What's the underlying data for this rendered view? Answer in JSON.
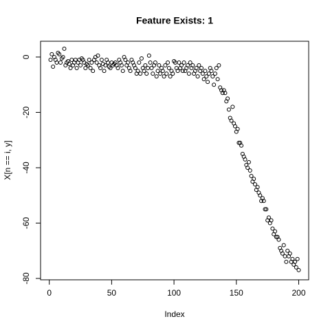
{
  "chart_data": {
    "type": "scatter",
    "title": "Feature Exists: 1",
    "x_label": "Index",
    "y_label": "X[n == i, y]",
    "x": [
      1,
      2,
      3,
      4,
      5,
      6,
      7,
      8,
      9,
      10,
      11,
      12,
      13,
      14,
      15,
      16,
      17,
      18,
      19,
      20,
      21,
      22,
      23,
      24,
      25,
      26,
      27,
      28,
      29,
      30,
      31,
      32,
      33,
      34,
      35,
      36,
      37,
      38,
      39,
      40,
      41,
      42,
      43,
      44,
      45,
      46,
      47,
      48,
      49,
      50,
      51,
      52,
      53,
      54,
      55,
      56,
      57,
      58,
      59,
      60,
      61,
      62,
      63,
      64,
      65,
      66,
      67,
      68,
      69,
      70,
      71,
      72,
      73,
      74,
      75,
      76,
      77,
      78,
      79,
      80,
      81,
      82,
      83,
      84,
      85,
      86,
      87,
      88,
      89,
      90,
      91,
      92,
      93,
      94,
      95,
      96,
      97,
      98,
      99,
      100,
      101,
      102,
      103,
      104,
      105,
      106,
      107,
      108,
      109,
      110,
      111,
      112,
      113,
      114,
      115,
      116,
      117,
      118,
      119,
      120,
      121,
      122,
      123,
      124,
      125,
      126,
      127,
      128,
      129,
      130,
      131,
      132,
      133,
      134,
      135,
      136,
      137,
      138,
      139,
      140,
      141,
      142,
      143,
      144,
      145,
      146,
      147,
      148,
      149,
      150,
      151,
      152,
      153,
      154,
      155,
      156,
      157,
      158,
      159,
      160,
      161,
      162,
      163,
      164,
      165,
      166,
      167,
      168,
      169,
      170,
      171,
      172,
      173,
      174,
      175,
      176,
      177,
      178,
      179,
      180,
      181,
      182,
      183,
      184,
      185,
      186,
      187,
      188,
      189,
      190,
      191,
      192,
      193,
      194,
      195,
      196,
      197,
      198,
      199,
      200
    ],
    "values": [
      -1,
      1,
      -3.5,
      0,
      -1,
      -2,
      1.5,
      1,
      -2,
      -0.5,
      0,
      3,
      -3,
      -2,
      -1.5,
      -2.5,
      -4,
      -1,
      -3,
      -2,
      -1,
      -4,
      -2,
      -1,
      -3,
      -0.5,
      -1,
      -2,
      -4,
      -2.5,
      -3,
      -1,
      -4,
      -2,
      -5,
      -1,
      0,
      -2,
      0.5,
      -3,
      -4,
      -1,
      -2.5,
      -5,
      -3,
      -1,
      -2,
      -3.5,
      -4,
      -2,
      -3,
      -2.5,
      -2,
      -3,
      -4,
      -1,
      -2,
      -3,
      -5,
      0,
      -1,
      -3,
      -2,
      -4,
      -5,
      -1,
      -2,
      -3,
      -4,
      -6,
      -5,
      -2,
      -6,
      -0.5,
      -4,
      -5,
      -3,
      -6,
      -4,
      0.5,
      -2,
      -4,
      -6,
      -3,
      -2,
      -7,
      -5,
      -3,
      -6,
      -4,
      -5,
      -7,
      -3,
      -6,
      -2,
      -4,
      -7,
      -5,
      -6,
      -1.5,
      -2,
      -4,
      -5,
      -2,
      -4,
      -3,
      -5,
      -2,
      -5,
      -4,
      -3,
      -6,
      -2,
      -4,
      -3,
      -6,
      -5,
      -4,
      -7,
      -3,
      -5,
      -4,
      -6,
      -8,
      -5,
      -7,
      -9,
      -6,
      -4,
      -5,
      -7,
      -10,
      -6,
      -4,
      -8,
      -3,
      -11,
      -12,
      -13,
      -12,
      -13,
      -16,
      -15,
      -19,
      -22,
      -23,
      -18,
      -24,
      -25,
      -27,
      -26,
      -31,
      -31,
      -32,
      -35,
      -36,
      -37,
      -39,
      -40,
      -38,
      -41,
      -43,
      -45,
      -44,
      -46,
      -48,
      -47,
      -49,
      -50,
      -52,
      -51,
      -52,
      -55,
      -55,
      -59,
      -58,
      -60,
      -59,
      -62,
      -64,
      -63,
      -65,
      -65,
      -66,
      -69,
      -70,
      -71,
      -68,
      -72,
      -74,
      -70,
      -72,
      -71,
      -74,
      -73,
      -75,
      -74,
      -76,
      -73,
      -77
    ],
    "color": "#000000",
    "xlim": [
      -7,
      208
    ],
    "ylim": [
      -80.5,
      5.7
    ],
    "xticks": [
      0,
      50,
      100,
      150,
      200
    ],
    "yticks": [
      0,
      -20,
      -40,
      -60,
      -80
    ]
  }
}
